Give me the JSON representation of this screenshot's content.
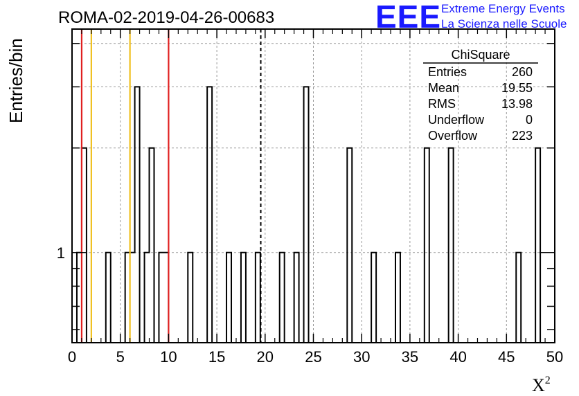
{
  "chart_data": {
    "type": "bar",
    "title": "ROMA-02-2019-04-26-00683",
    "xlabel": "X",
    "xlabel_sup": "2",
    "ylabel": "Entries/bin",
    "xlim": [
      0,
      50
    ],
    "ylim": [
      0.55,
      4.4
    ],
    "ylog": true,
    "grid": true,
    "bin_width": 0.5,
    "x_ticks": [
      "0",
      "5",
      "10",
      "15",
      "20",
      "25",
      "30",
      "35",
      "40",
      "45",
      "50"
    ],
    "y_tick_labels": [
      {
        "value": 1,
        "label": "1"
      }
    ],
    "bins": [
      {
        "x": 0.5,
        "value": 1
      },
      {
        "x": 1.0,
        "value": 2
      },
      {
        "x": 3.5,
        "value": 1
      },
      {
        "x": 5.5,
        "value": 1
      },
      {
        "x": 6.0,
        "value": 1
      },
      {
        "x": 6.5,
        "value": 3
      },
      {
        "x": 7.5,
        "value": 1
      },
      {
        "x": 8.0,
        "value": 2
      },
      {
        "x": 9.0,
        "value": 1
      },
      {
        "x": 9.5,
        "value": 1
      },
      {
        "x": 12.0,
        "value": 1
      },
      {
        "x": 14.0,
        "value": 3
      },
      {
        "x": 16.0,
        "value": 1
      },
      {
        "x": 17.5,
        "value": 1
      },
      {
        "x": 19.0,
        "value": 1
      },
      {
        "x": 21.5,
        "value": 1
      },
      {
        "x": 23.0,
        "value": 1
      },
      {
        "x": 24.0,
        "value": 3
      },
      {
        "x": 28.5,
        "value": 2
      },
      {
        "x": 31.0,
        "value": 1
      },
      {
        "x": 33.5,
        "value": 1
      },
      {
        "x": 36.5,
        "value": 2
      },
      {
        "x": 39.0,
        "value": 2
      },
      {
        "x": 46.0,
        "value": 1
      },
      {
        "x": 48.0,
        "value": 2
      }
    ],
    "vertical_lines": [
      {
        "x": 1.0,
        "color": "#e02020",
        "style": "solid"
      },
      {
        "x": 2.0,
        "color": "#f0c020",
        "style": "solid"
      },
      {
        "x": 6.0,
        "color": "#f0c020",
        "style": "solid"
      },
      {
        "x": 10.0,
        "color": "#e02020",
        "style": "solid"
      },
      {
        "x": 19.55,
        "color": "#000000",
        "style": "dashed"
      }
    ],
    "stats_box": {
      "name": "ChiSquare",
      "rows": [
        {
          "label": "Entries",
          "value": "260"
        },
        {
          "label": "Mean",
          "value": "19.55"
        },
        {
          "label": "RMS",
          "value": "13.98"
        },
        {
          "label": "Underflow",
          "value": "0"
        },
        {
          "label": "Overflow",
          "value": "223"
        }
      ]
    }
  },
  "logo": {
    "mark": "EEE",
    "line1": "Extreme Energy Events",
    "line2": "La Scienza nelle Scuole",
    "color": "#1a1aff"
  }
}
